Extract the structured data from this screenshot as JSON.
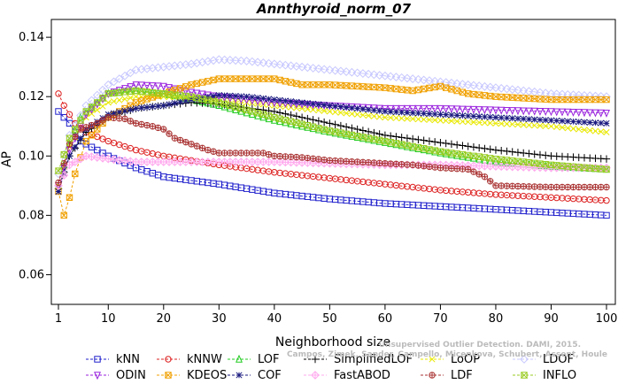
{
  "chart_data": {
    "type": "line",
    "title": "Annthyroid_norm_07",
    "xlabel": "Neighborhood size",
    "ylabel": "AP",
    "xlim": [
      1,
      100
    ],
    "ylim": [
      0.05,
      0.146
    ],
    "xticks": [
      1,
      10,
      20,
      30,
      40,
      50,
      60,
      70,
      80,
      90,
      100
    ],
    "yticks": [
      0.06,
      0.08,
      0.1,
      0.12,
      0.14
    ],
    "ytick_labels": [
      "0.06",
      "0.08",
      "0.10",
      "0.12",
      "0.14"
    ],
    "grid": false,
    "legend_position": "bottom",
    "credit_line1": "Unsupervised Outlier Detection. DAMI, 2015.",
    "credit_line2": "Campos, Zimek, Sander, Campello, Micenkova, Schubert, Assent, Houle",
    "series": [
      {
        "name": "kNN",
        "color": "#1f1fcc",
        "marker": "square",
        "points": [
          [
            1,
            0.115
          ],
          [
            3,
            0.111
          ],
          [
            5,
            0.105
          ],
          [
            7,
            0.103
          ],
          [
            10,
            0.1
          ],
          [
            15,
            0.096
          ],
          [
            20,
            0.093
          ],
          [
            30,
            0.0905
          ],
          [
            40,
            0.0875
          ],
          [
            50,
            0.0855
          ],
          [
            60,
            0.084
          ],
          [
            70,
            0.083
          ],
          [
            80,
            0.082
          ],
          [
            90,
            0.081
          ],
          [
            100,
            0.08
          ]
        ]
      },
      {
        "name": "kNNW",
        "color": "#dd2222",
        "marker": "circle",
        "points": [
          [
            1,
            0.121
          ],
          [
            2,
            0.117
          ],
          [
            4,
            0.111
          ],
          [
            6,
            0.108
          ],
          [
            10,
            0.105
          ],
          [
            15,
            0.102
          ],
          [
            20,
            0.1
          ],
          [
            30,
            0.097
          ],
          [
            40,
            0.0945
          ],
          [
            50,
            0.0925
          ],
          [
            60,
            0.0905
          ],
          [
            70,
            0.0885
          ],
          [
            80,
            0.087
          ],
          [
            90,
            0.086
          ],
          [
            100,
            0.085
          ]
        ]
      },
      {
        "name": "LOF",
        "color": "#22cc22",
        "marker": "triangle",
        "points": [
          [
            1,
            0.09
          ],
          [
            3,
            0.104
          ],
          [
            5,
            0.113
          ],
          [
            8,
            0.118
          ],
          [
            10,
            0.121
          ],
          [
            15,
            0.122
          ],
          [
            20,
            0.121
          ],
          [
            25,
            0.119
          ],
          [
            30,
            0.117
          ],
          [
            40,
            0.112
          ],
          [
            50,
            0.108
          ],
          [
            60,
            0.1045
          ],
          [
            70,
            0.101
          ],
          [
            80,
            0.098
          ],
          [
            90,
            0.0965
          ],
          [
            100,
            0.0955
          ]
        ]
      },
      {
        "name": "SimplifiedLOF",
        "color": "#000000",
        "marker": "plus",
        "points": [
          [
            1,
            0.089
          ],
          [
            3,
            0.1
          ],
          [
            6,
            0.108
          ],
          [
            10,
            0.113
          ],
          [
            15,
            0.116
          ],
          [
            20,
            0.117
          ],
          [
            25,
            0.118
          ],
          [
            30,
            0.1175
          ],
          [
            40,
            0.115
          ],
          [
            50,
            0.111
          ],
          [
            60,
            0.107
          ],
          [
            70,
            0.1045
          ],
          [
            80,
            0.102
          ],
          [
            90,
            0.1
          ],
          [
            100,
            0.099
          ]
        ]
      },
      {
        "name": "LoOP",
        "color": "#e8e800",
        "marker": "x",
        "points": [
          [
            1,
            0.09
          ],
          [
            3,
            0.103
          ],
          [
            6,
            0.113
          ],
          [
            10,
            0.118
          ],
          [
            15,
            0.12
          ],
          [
            20,
            0.12
          ],
          [
            30,
            0.119
          ],
          [
            40,
            0.117
          ],
          [
            50,
            0.115
          ],
          [
            60,
            0.113
          ],
          [
            70,
            0.112
          ],
          [
            80,
            0.111
          ],
          [
            90,
            0.11
          ],
          [
            100,
            0.108
          ]
        ]
      },
      {
        "name": "LDOF",
        "color": "#c8c8ff",
        "marker": "diamond",
        "points": [
          [
            1,
            0.094
          ],
          [
            3,
            0.107
          ],
          [
            6,
            0.117
          ],
          [
            10,
            0.124
          ],
          [
            15,
            0.129
          ],
          [
            20,
            0.13
          ],
          [
            25,
            0.131
          ],
          [
            30,
            0.1325
          ],
          [
            35,
            0.132
          ],
          [
            40,
            0.131
          ],
          [
            50,
            0.129
          ],
          [
            60,
            0.127
          ],
          [
            70,
            0.125
          ],
          [
            80,
            0.123
          ],
          [
            90,
            0.121
          ],
          [
            100,
            0.12
          ]
        ]
      },
      {
        "name": "ODIN",
        "color": "#9922dd",
        "marker": "triangle-down",
        "points": [
          [
            1,
            0.09
          ],
          [
            3,
            0.102
          ],
          [
            6,
            0.114
          ],
          [
            10,
            0.121
          ],
          [
            15,
            0.124
          ],
          [
            20,
            0.1235
          ],
          [
            25,
            0.1215
          ],
          [
            30,
            0.12
          ],
          [
            40,
            0.118
          ],
          [
            50,
            0.117
          ],
          [
            60,
            0.116
          ],
          [
            70,
            0.116
          ],
          [
            80,
            0.1155
          ],
          [
            90,
            0.115
          ],
          [
            100,
            0.1145
          ]
        ]
      },
      {
        "name": "KDEOS",
        "color": "#f0a000",
        "marker": "boxed-x",
        "points": [
          [
            1,
            0.088
          ],
          [
            2,
            0.08
          ],
          [
            3,
            0.086
          ],
          [
            4,
            0.094
          ],
          [
            6,
            0.105
          ],
          [
            10,
            0.113
          ],
          [
            15,
            0.118
          ],
          [
            20,
            0.121
          ],
          [
            25,
            0.124
          ],
          [
            30,
            0.126
          ],
          [
            35,
            0.126
          ],
          [
            40,
            0.126
          ],
          [
            45,
            0.124
          ],
          [
            50,
            0.124
          ],
          [
            60,
            0.123
          ],
          [
            65,
            0.122
          ],
          [
            70,
            0.1235
          ],
          [
            75,
            0.121
          ],
          [
            80,
            0.12
          ],
          [
            90,
            0.119
          ],
          [
            100,
            0.119
          ]
        ]
      },
      {
        "name": "COF",
        "color": "#1a1a80",
        "marker": "asterisk",
        "points": [
          [
            1,
            0.088
          ],
          [
            3,
            0.1
          ],
          [
            6,
            0.109
          ],
          [
            10,
            0.114
          ],
          [
            15,
            0.116
          ],
          [
            20,
            0.117
          ],
          [
            25,
            0.119
          ],
          [
            30,
            0.1205
          ],
          [
            35,
            0.12
          ],
          [
            40,
            0.119
          ],
          [
            50,
            0.117
          ],
          [
            60,
            0.115
          ],
          [
            70,
            0.114
          ],
          [
            80,
            0.113
          ],
          [
            90,
            0.112
          ],
          [
            100,
            0.111
          ]
        ]
      },
      {
        "name": "FastABOD",
        "color": "#ffaaee",
        "marker": "diamond-plus",
        "points": [
          [
            1,
            0.09
          ],
          [
            3,
            0.097
          ],
          [
            6,
            0.1
          ],
          [
            10,
            0.099
          ],
          [
            15,
            0.098
          ],
          [
            20,
            0.098
          ],
          [
            30,
            0.098
          ],
          [
            40,
            0.098
          ],
          [
            50,
            0.0975
          ],
          [
            60,
            0.097
          ],
          [
            70,
            0.097
          ],
          [
            80,
            0.0965
          ],
          [
            90,
            0.096
          ],
          [
            100,
            0.096
          ]
        ]
      },
      {
        "name": "LDF",
        "color": "#aa3333",
        "marker": "circle-plus",
        "points": [
          [
            1,
            0.091
          ],
          [
            3,
            0.104
          ],
          [
            5,
            0.109
          ],
          [
            8,
            0.111
          ],
          [
            10,
            0.113
          ],
          [
            13,
            0.1125
          ],
          [
            15,
            0.111
          ],
          [
            18,
            0.11
          ],
          [
            20,
            0.109
          ],
          [
            22,
            0.106
          ],
          [
            25,
            0.104
          ],
          [
            28,
            0.102
          ],
          [
            30,
            0.101
          ],
          [
            35,
            0.101
          ],
          [
            38,
            0.101
          ],
          [
            40,
            0.1
          ],
          [
            45,
            0.0995
          ],
          [
            50,
            0.0985
          ],
          [
            55,
            0.098
          ],
          [
            60,
            0.0975
          ],
          [
            65,
            0.097
          ],
          [
            70,
            0.096
          ],
          [
            75,
            0.0955
          ],
          [
            78,
            0.093
          ],
          [
            80,
            0.09
          ],
          [
            90,
            0.0895
          ],
          [
            100,
            0.0895
          ]
        ]
      },
      {
        "name": "INFLO",
        "color": "#99cc22",
        "marker": "hourglass",
        "points": [
          [
            1,
            0.095
          ],
          [
            3,
            0.106
          ],
          [
            6,
            0.115
          ],
          [
            10,
            0.121
          ],
          [
            15,
            0.122
          ],
          [
            20,
            0.121
          ],
          [
            25,
            0.12
          ],
          [
            30,
            0.118
          ],
          [
            40,
            0.113
          ],
          [
            50,
            0.1085
          ],
          [
            60,
            0.105
          ],
          [
            70,
            0.1015
          ],
          [
            80,
            0.099
          ],
          [
            90,
            0.097
          ],
          [
            100,
            0.0955
          ]
        ]
      }
    ]
  }
}
